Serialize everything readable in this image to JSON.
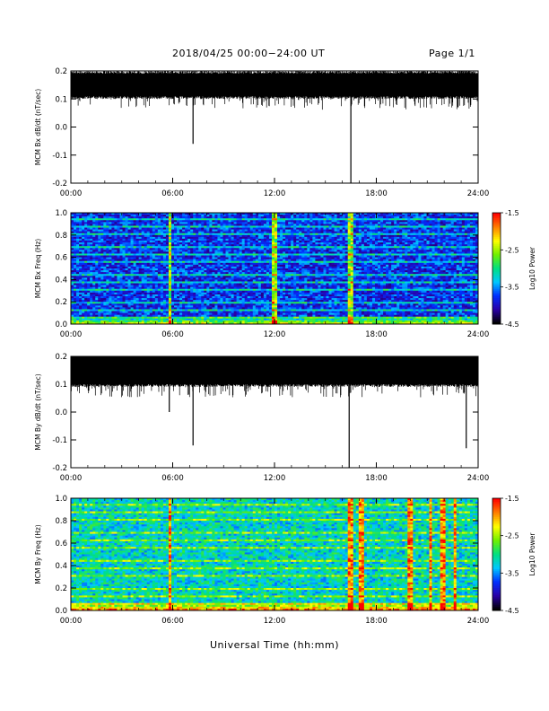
{
  "header": {
    "date_range": "2018/04/25  00:00−24:00 UT",
    "page": "Page 1/1"
  },
  "footer": {
    "xlabel": "Universal Time (hh:mm)"
  },
  "colors": {
    "trace": "#000000",
    "colormap": [
      "#000000",
      "#2a00a8",
      "#0030ff",
      "#00c8ff",
      "#00e080",
      "#70f000",
      "#ffff00",
      "#ff8000",
      "#ff0000"
    ]
  },
  "chart_data": [
    {
      "type": "line",
      "ylabel": "MCM Bx dB/dt (nT/sec)",
      "ylim": [
        -0.2,
        0.2
      ],
      "yticks": [
        "0.2",
        "0.1",
        "0.0",
        "-0.1",
        "-0.2"
      ],
      "xticks": [
        "00:00",
        "06:00",
        "12:00",
        "18:00",
        "24:00"
      ],
      "xlim_hours": [
        0,
        24
      ],
      "baseline": 0.15,
      "noise_band": [
        0.11,
        0.19
      ],
      "spikes": [
        {
          "x_hours": 7.2,
          "y": -0.06
        },
        {
          "x_hours": 16.5,
          "y": -0.2
        }
      ]
    },
    {
      "type": "heatmap",
      "ylabel": "MCM Bx Freq (Hz)",
      "ylim": [
        0.0,
        1.0
      ],
      "yticks": [
        "1.0",
        "0.8",
        "0.6",
        "0.4",
        "0.2",
        "0.0"
      ],
      "xticks": [
        "00:00",
        "06:00",
        "12:00",
        "18:00",
        "24:00"
      ],
      "xlim_hours": [
        0,
        24
      ],
      "colorbar": {
        "label": "Log10 Power",
        "ticks": [
          "-1.5",
          "-2.5",
          "-3.5",
          "-4.5"
        ],
        "range": [
          -4.5,
          -1.5
        ]
      },
      "harmonic_spacing_hz": 0.0625,
      "dominant_level": -3.8,
      "bursts_hours": [
        5.8,
        12.0,
        16.5
      ]
    },
    {
      "type": "line",
      "ylabel": "MCM By dB/dt (nT/sec)",
      "ylim": [
        -0.2,
        0.2
      ],
      "yticks": [
        "0.2",
        "0.1",
        "0.0",
        "-0.1",
        "-0.2"
      ],
      "xticks": [
        "00:00",
        "06:00",
        "12:00",
        "18:00",
        "24:00"
      ],
      "xlim_hours": [
        0,
        24
      ],
      "baseline": 0.16,
      "noise_band": [
        0.1,
        0.2
      ],
      "spikes": [
        {
          "x_hours": 5.8,
          "y": 0.0
        },
        {
          "x_hours": 7.2,
          "y": -0.12
        },
        {
          "x_hours": 16.4,
          "y": -0.2
        },
        {
          "x_hours": 23.3,
          "y": -0.13
        }
      ]
    },
    {
      "type": "heatmap",
      "ylabel": "MCM By Freq (Hz)",
      "ylim": [
        0.0,
        1.0
      ],
      "yticks": [
        "1.0",
        "0.8",
        "0.6",
        "0.4",
        "0.2",
        "0.0"
      ],
      "xticks": [
        "00:00",
        "06:00",
        "12:00",
        "18:00",
        "24:00"
      ],
      "xlim_hours": [
        0,
        24
      ],
      "colorbar": {
        "label": "Log10 Power",
        "ticks": [
          "-1.5",
          "-2.5",
          "-3.5",
          "-4.5"
        ],
        "range": [
          -4.5,
          -1.5
        ]
      },
      "harmonic_spacing_hz": 0.0625,
      "dominant_level": -3.2,
      "bursts_hours": [
        5.8,
        16.5,
        17.0,
        17.2,
        20.0,
        21.2,
        21.9,
        22.6
      ]
    }
  ]
}
